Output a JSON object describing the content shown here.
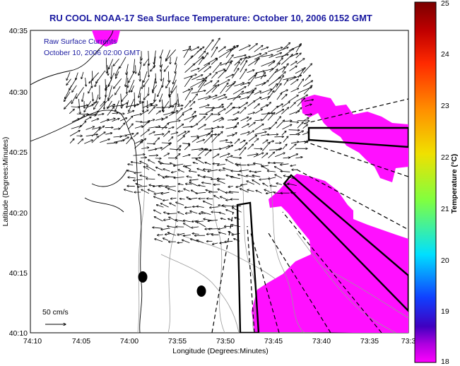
{
  "title": "RU COOL  NOAA-17  Sea Surface Temperature:  October 10, 2006 0152 GMT",
  "annotation": {
    "line1": "Raw Surface Currents",
    "line2": "October 10, 2006 02:00 GMT"
  },
  "scale_label": "50 cm/s",
  "xlabel": "Longitude (Degrees:Minutes)",
  "ylabel": "Latitude (Degrees:Minutes)",
  "colorbar": {
    "label": "Temperature (°C)",
    "ticks": [
      "25",
      "24",
      "23",
      "22",
      "21",
      "20",
      "19",
      "18"
    ],
    "colors": [
      "#a50000",
      "#ff2a00",
      "#ffa000",
      "#e6e600",
      "#70ff50",
      "#00d8ff",
      "#1030ff",
      "#ff00ff"
    ]
  },
  "x_ticks": [
    "74:10",
    "74:05",
    "74:00",
    "73:55",
    "73:50",
    "73:45",
    "73:40",
    "73:35",
    "73:3"
  ],
  "y_ticks": [
    "40:35",
    "40:30",
    "40:25",
    "40:20",
    "40:15",
    "40:10"
  ],
  "colors": {
    "title": "#1a1aa0",
    "sst_patch": "#ff10ff",
    "coast": "#000000",
    "bathymetry": "#9a9a9a"
  }
}
